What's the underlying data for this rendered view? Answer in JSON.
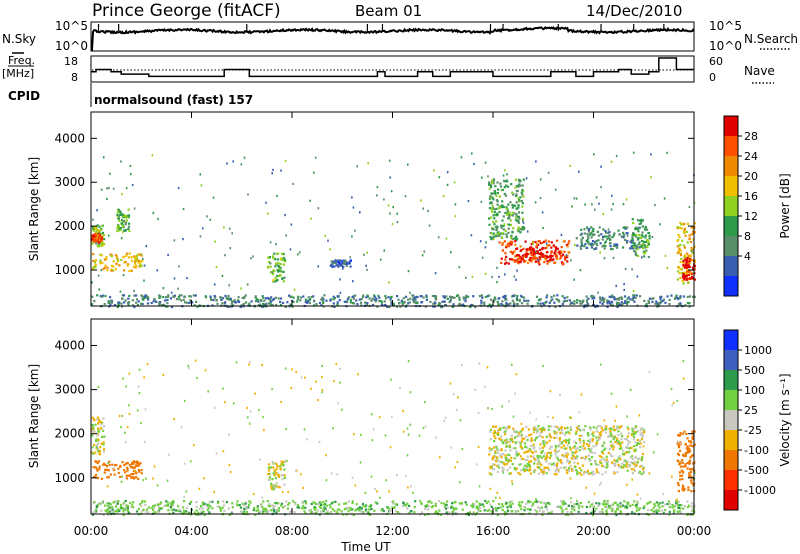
{
  "header": {
    "station": "Prince George (fitACF)",
    "beam": "Beam 01",
    "date": "14/Dec/2010"
  },
  "noise_panel": {
    "left_label": "N.Sky",
    "right_label": "N.Search",
    "left_ticks": [
      "10^5",
      "10^0"
    ],
    "right_ticks": [
      "10^5",
      "10^0"
    ]
  },
  "freq_panel": {
    "left_label_line1": "Freq.",
    "left_label_line2": "[MHz]",
    "right_label": "Nave",
    "left_ticks": [
      "18",
      "8"
    ],
    "right_ticks": [
      "60",
      "0"
    ]
  },
  "cpid": {
    "label": "CPID",
    "mode": "normalsound (fast) 157"
  },
  "power_colorbar": {
    "label": "Power [dB]",
    "ticks": [
      "28",
      "24",
      "20",
      "16",
      "12",
      "8",
      "4"
    ],
    "colors": [
      "#e00000",
      "#ff5000",
      "#f08a00",
      "#f0c000",
      "#90d020",
      "#2e9a4c",
      "#5a8e6a",
      "#3a5fb0",
      "#1030ff"
    ]
  },
  "velocity_colorbar": {
    "label": "Velocity [m s⁻¹]",
    "ticks": [
      "1000",
      "500",
      "100",
      "25",
      "-25",
      "-100",
      "-500",
      "-1000"
    ],
    "colors": [
      "#1030ff",
      "#4060c0",
      "#2e9a4c",
      "#70d040",
      "#c8c8c0",
      "#f0b000",
      "#f07800",
      "#ff3000",
      "#e00000"
    ]
  },
  "axes": {
    "ylabel": "Slant Range [km]",
    "xlabel": "Time UT",
    "y_ticks": [
      "4000",
      "3000",
      "2000",
      "1000"
    ],
    "x_ticks": [
      "00:00",
      "04:00",
      "08:00",
      "12:00",
      "16:00",
      "20:00",
      "00:00"
    ]
  },
  "chart_data": [
    {
      "type": "line",
      "name": "noise",
      "x_unit": "hours UT",
      "y_scale": "log",
      "ylim": [
        "10^0",
        "10^5"
      ],
      "sky_noise_level": "~10^4",
      "search_noise_level": "~10^4"
    },
    {
      "type": "line",
      "name": "frequency / nave",
      "x_unit": "hours UT",
      "ylim_freq_mhz": [
        8,
        18
      ],
      "ylim_nave": [
        0,
        60
      ],
      "freq_steps": [
        {
          "from": 0.0,
          "to": 0.2,
          "value": 12
        },
        {
          "from": 0.2,
          "to": 0.8,
          "value": 13
        },
        {
          "from": 0.8,
          "to": 1.2,
          "value": 12
        },
        {
          "from": 1.2,
          "to": 2.3,
          "value": 11
        },
        {
          "from": 2.3,
          "to": 5.3,
          "value": 10
        },
        {
          "from": 5.3,
          "to": 6.3,
          "value": 13
        },
        {
          "from": 6.3,
          "to": 9.0,
          "value": 10
        },
        {
          "from": 9.0,
          "to": 11.4,
          "value": 10
        },
        {
          "from": 11.4,
          "to": 11.7,
          "value": 12
        },
        {
          "from": 11.7,
          "to": 12.0,
          "value": 10
        },
        {
          "from": 12.0,
          "to": 13.0,
          "value": 10
        },
        {
          "from": 13.0,
          "to": 13.6,
          "value": 12
        },
        {
          "from": 13.6,
          "to": 14.3,
          "value": 10
        },
        {
          "from": 14.3,
          "to": 16.0,
          "value": 12
        },
        {
          "from": 16.0,
          "to": 18.3,
          "value": 10
        },
        {
          "from": 18.3,
          "to": 19.3,
          "value": 12
        },
        {
          "from": 19.3,
          "to": 20.0,
          "value": 10
        },
        {
          "from": 20.0,
          "to": 21.0,
          "value": 12
        },
        {
          "from": 21.0,
          "to": 21.5,
          "value": 13
        },
        {
          "from": 21.5,
          "to": 22.2,
          "value": 11
        },
        {
          "from": 22.2,
          "to": 22.6,
          "value": 12
        },
        {
          "from": 22.6,
          "to": 23.3,
          "value": 18
        },
        {
          "from": 23.3,
          "to": 24.0,
          "value": 13
        }
      ],
      "nave_mean": 22
    },
    {
      "type": "heatmap",
      "name": "Power",
      "x_unit": "hours UT",
      "y_unit": "km",
      "xlim": [
        0,
        24
      ],
      "ylim": [
        180,
        4600
      ],
      "clim_db": [
        0,
        32
      ],
      "patches": [
        {
          "t0": 0.0,
          "t1": 0.5,
          "r0": 1550,
          "r1": 2050,
          "p": 16
        },
        {
          "t0": 0.0,
          "t1": 0.4,
          "r0": 1650,
          "r1": 1850,
          "p": 27
        },
        {
          "t0": 0.0,
          "t1": 2.0,
          "r0": 1000,
          "r1": 1400,
          "p": 20
        },
        {
          "t0": 1.0,
          "t1": 1.5,
          "r0": 1900,
          "r1": 2400,
          "p": 13
        },
        {
          "t0": 0.0,
          "t1": 24.0,
          "r0": 180,
          "r1": 450,
          "p": 8
        },
        {
          "t0": 7.0,
          "t1": 7.7,
          "r0": 750,
          "r1": 1400,
          "p": 14
        },
        {
          "t0": 9.5,
          "t1": 10.3,
          "r0": 1100,
          "r1": 1250,
          "p": 6
        },
        {
          "t0": 15.8,
          "t1": 17.2,
          "r0": 1700,
          "r1": 3100,
          "p": 12
        },
        {
          "t0": 16.2,
          "t1": 19.0,
          "r0": 1150,
          "r1": 1700,
          "p": 27
        },
        {
          "t0": 16.8,
          "t1": 18.5,
          "r0": 1200,
          "r1": 1550,
          "p": 30
        },
        {
          "t0": 19.2,
          "t1": 21.8,
          "r0": 1500,
          "r1": 2000,
          "p": 9
        },
        {
          "t0": 21.5,
          "t1": 22.2,
          "r0": 1300,
          "r1": 2200,
          "p": 13
        },
        {
          "t0": 23.3,
          "t1": 24.0,
          "r0": 700,
          "r1": 2100,
          "p": 20
        },
        {
          "t0": 23.5,
          "t1": 24.0,
          "r0": 800,
          "r1": 1300,
          "p": 30
        }
      ]
    },
    {
      "type": "heatmap",
      "name": "Velocity",
      "x_unit": "hours UT",
      "y_unit": "km",
      "xlim": [
        0,
        24
      ],
      "ylim": [
        180,
        4600
      ],
      "clim_ms": [
        -1000,
        1000
      ],
      "patches": [
        {
          "t0": 0.0,
          "t1": 0.5,
          "r0": 1550,
          "r1": 2400,
          "v": 0
        },
        {
          "t0": 0.0,
          "t1": 2.0,
          "r0": 1000,
          "r1": 1400,
          "v": -200
        },
        {
          "t0": 0.0,
          "t1": 24.0,
          "r0": 180,
          "r1": 500,
          "v": 60
        },
        {
          "t0": 7.0,
          "t1": 7.7,
          "r0": 750,
          "r1": 1400,
          "v": 0
        },
        {
          "t0": 15.8,
          "t1": 22.0,
          "r0": 1100,
          "r1": 2200,
          "v": 0
        },
        {
          "t0": 23.3,
          "t1": 24.0,
          "r0": 700,
          "r1": 2100,
          "v": -300
        }
      ]
    }
  ]
}
